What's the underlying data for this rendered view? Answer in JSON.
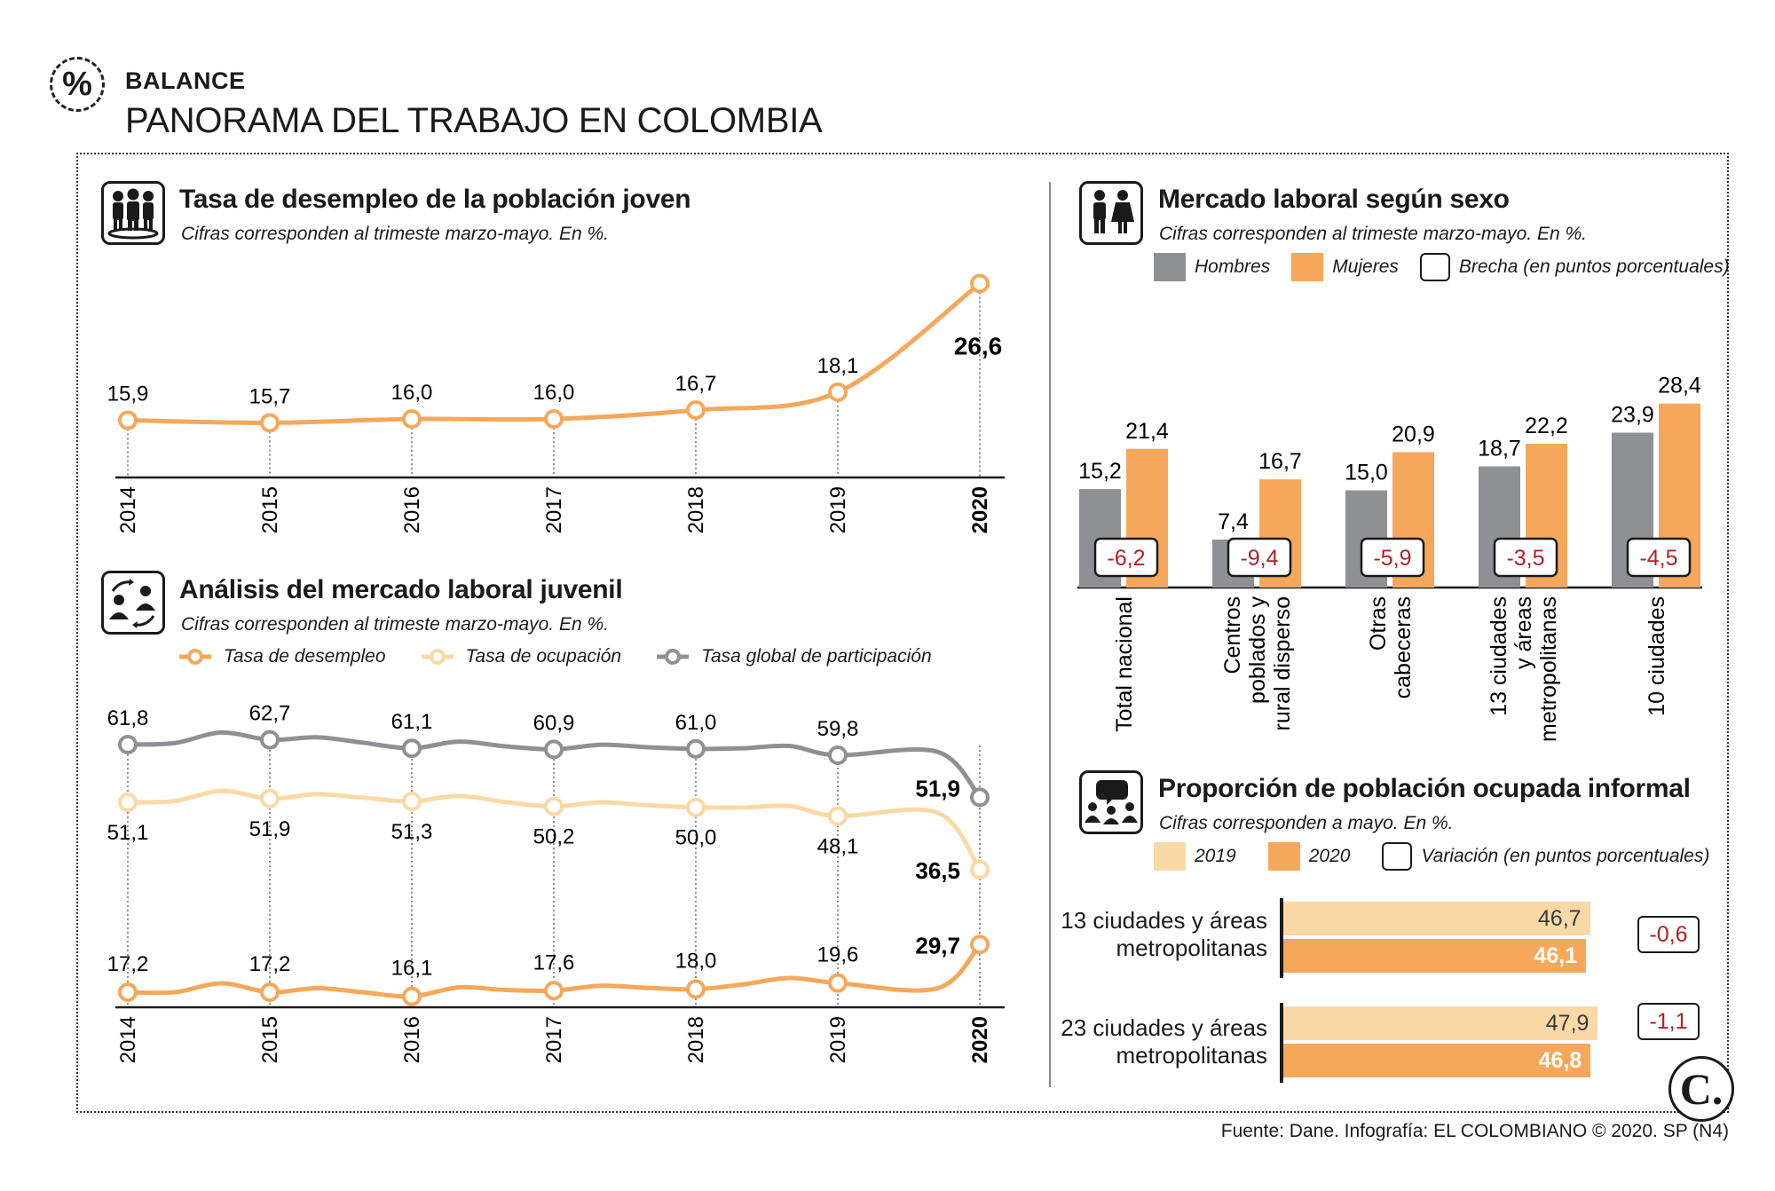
{
  "header": {
    "kicker": "BALANCE",
    "title": "PANORAMA DEL TRABAJO EN COLOMBIA",
    "percent_symbol": "%"
  },
  "colors": {
    "orange": "#f5a85b",
    "light_orange": "#fad9a6",
    "gray": "#8f9094",
    "dark": "#1a1a1a",
    "red": "#b22026"
  },
  "youth_unemployment": {
    "title": "Tasa de desempleo de la población joven",
    "subtitle": "Cifras corresponden al trimeste marzo-mayo. En %.",
    "icon": "people-group-icon"
  },
  "youth_market": {
    "title": "Análisis del mercado laboral juvenil",
    "subtitle": "Cifras corresponden al trimeste marzo-mayo. En %.",
    "icon": "exchange-people-icon",
    "legend": [
      "Tasa de desempleo",
      "Tasa de ocupación",
      "Tasa global de participación"
    ]
  },
  "gender_market": {
    "title": "Mercado laboral según sexo",
    "subtitle": "Cifras corresponden al trimeste marzo-mayo. En %.",
    "icon": "man-woman-icon",
    "legend": [
      "Hombres",
      "Mujeres",
      "Brecha (en puntos porcentuales)"
    ]
  },
  "informal": {
    "title": "Proporción de población ocupada informal",
    "subtitle": "Cifras corresponden a mayo. En %.",
    "icon": "speech-people-icon",
    "legend": [
      "2019",
      "2020",
      "Variación (en puntos porcentuales)"
    ]
  },
  "chart_data": [
    {
      "id": "youth_unemployment",
      "type": "line",
      "title": "Tasa de desempleo de la población joven",
      "categories": [
        "2014",
        "2015",
        "2016",
        "2017",
        "2018",
        "2019",
        "2020"
      ],
      "series": [
        {
          "name": "Tasa de desempleo",
          "values": [
            15.9,
            15.7,
            16.0,
            16.0,
            16.7,
            18.1,
            26.6
          ]
        }
      ],
      "labels": [
        "15,9",
        "15,7",
        "16,0",
        "16,0",
        "16,7",
        "18,1",
        "26,6"
      ],
      "ylim": [
        13,
        30
      ]
    },
    {
      "id": "youth_market",
      "type": "line",
      "title": "Análisis del mercado laboral juvenil",
      "categories": [
        "2014",
        "2015",
        "2016",
        "2017",
        "2018",
        "2019",
        "2020"
      ],
      "series": [
        {
          "name": "Tasa global de participación",
          "values": [
            61.8,
            62.7,
            61.1,
            60.9,
            61.0,
            59.8,
            51.9
          ],
          "labels": [
            "61,8",
            "62,7",
            "61,1",
            "60,9",
            "61,0",
            "59,8",
            "51,9"
          ]
        },
        {
          "name": "Tasa de ocupación",
          "values": [
            51.1,
            51.9,
            51.3,
            50.2,
            50.0,
            48.1,
            36.5
          ],
          "labels": [
            "51,1",
            "51,9",
            "51,3",
            "50,2",
            "50,0",
            "48,1",
            "36,5"
          ]
        },
        {
          "name": "Tasa de desempleo",
          "values": [
            17.2,
            17.2,
            16.1,
            17.6,
            18.0,
            19.6,
            29.7
          ],
          "labels": [
            "17,2",
            "17,2",
            "16,1",
            "17,6",
            "18,0",
            "19,6",
            "29,7"
          ]
        }
      ]
    },
    {
      "id": "gender_market",
      "type": "bar",
      "title": "Mercado laboral según sexo",
      "categories": [
        "Total nacional",
        "Centros poblados y rural disperso",
        "Otras cabeceras",
        "13 ciudades y áreas metropolitanas",
        "10 ciudades"
      ],
      "category_lines": [
        [
          "Total nacional"
        ],
        [
          "Centros",
          "poblados y",
          "rural disperso"
        ],
        [
          "Otras",
          "cabeceras"
        ],
        [
          "13 ciudades",
          "y áreas",
          "metropolitanas"
        ],
        [
          "10 ciudades"
        ]
      ],
      "series": [
        {
          "name": "Hombres",
          "values": [
            15.2,
            7.4,
            15.0,
            18.7,
            23.9
          ],
          "labels": [
            "15,2",
            "7,4",
            "15,0",
            "18,7",
            "23,9"
          ]
        },
        {
          "name": "Mujeres",
          "values": [
            21.4,
            16.7,
            20.9,
            22.2,
            28.4
          ],
          "labels": [
            "21,4",
            "16,7",
            "20,9",
            "22,2",
            "28,4"
          ]
        }
      ],
      "gap": {
        "name": "Brecha (en puntos porcentuales)",
        "values": [
          -6.2,
          -9.4,
          -5.9,
          -3.5,
          -4.5
        ],
        "labels": [
          "-6,2",
          "-9,4",
          "-5,9",
          "-3,5",
          "-4,5"
        ]
      },
      "ylim": [
        0,
        30
      ]
    },
    {
      "id": "informal",
      "type": "bar",
      "orientation": "horizontal",
      "title": "Proporción de población ocupada informal",
      "categories": [
        "13 ciudades y áreas metropolitanas",
        "23 ciudades y áreas metropolitanas"
      ],
      "category_lines": [
        [
          "13 ciudades y áreas",
          "metropolitanas"
        ],
        [
          "23 ciudades y áreas",
          "metropolitanas"
        ]
      ],
      "series": [
        {
          "name": "2019",
          "values": [
            46.7,
            47.9
          ],
          "labels": [
            "46,7",
            "47,9"
          ]
        },
        {
          "name": "2020",
          "values": [
            46.1,
            46.8
          ],
          "labels": [
            "46,1",
            "46,8"
          ]
        }
      ],
      "variation": {
        "name": "Variación (en puntos porcentuales)",
        "values": [
          -0.6,
          -1.1
        ],
        "labels": [
          "-0,6",
          "-1,1"
        ]
      }
    }
  ],
  "footer": {
    "source": "Fuente: Dane. Infografía: EL COLOMBIANO © 2020. SP (N4)",
    "logo": "C."
  }
}
